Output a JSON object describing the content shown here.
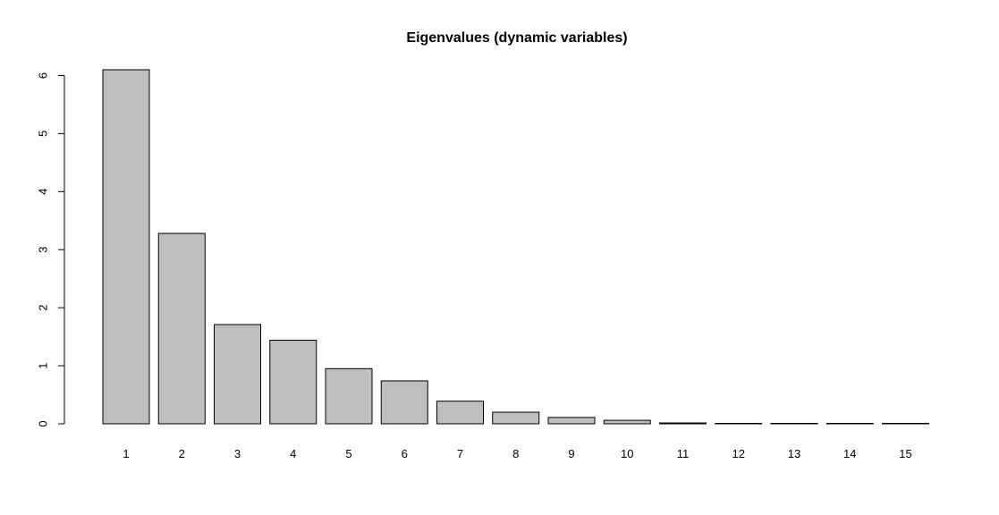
{
  "chart_data": {
    "type": "bar",
    "title": "Eigenvalues (dynamic variables)",
    "xlabel": "",
    "ylabel": "",
    "categories": [
      "1",
      "2",
      "3",
      "4",
      "5",
      "6",
      "7",
      "8",
      "9",
      "10",
      "11",
      "12",
      "13",
      "14",
      "15"
    ],
    "values": [
      6.1,
      3.28,
      1.71,
      1.44,
      0.95,
      0.74,
      0.39,
      0.2,
      0.11,
      0.06,
      0.015,
      0.007,
      0.004,
      0.002,
      0.001
    ],
    "y_ticks": [
      "0",
      "1",
      "2",
      "3",
      "4",
      "5",
      "6"
    ],
    "ylim": [
      0,
      6.1
    ],
    "grid": false,
    "bar_fill": "#bebebe",
    "bar_stroke": "#000000"
  }
}
